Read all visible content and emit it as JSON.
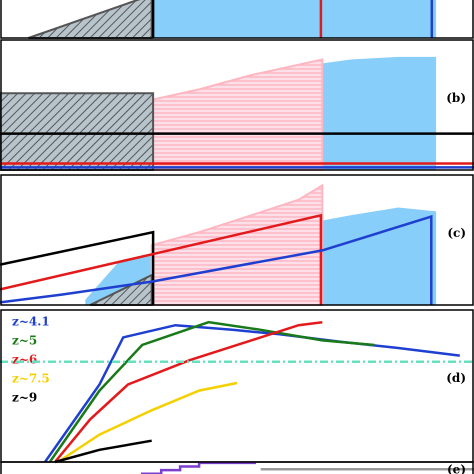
{
  "chart_data": [
    {
      "type": "line",
      "xlim": [
        0,
        1
      ],
      "ylim": [
        0,
        1
      ],
      "series": [
        {
          "color": "#87cefa",
          "style": "area",
          "x": [
            0.32,
            0.92
          ],
          "values": [
            1,
            1
          ]
        },
        {
          "color": "#555555",
          "style": "hatch",
          "x": [
            0.06,
            0.32
          ],
          "values": [
            0,
            1
          ]
        },
        {
          "color": "#000000",
          "style": "line",
          "x": [
            0.323,
            0.323
          ],
          "values": [
            0,
            1
          ]
        },
        {
          "color": "#e31a1c",
          "style": "line",
          "x": [
            0.677,
            0.677
          ],
          "values": [
            0,
            1
          ]
        },
        {
          "color": "#1f3fd0",
          "style": "line",
          "x": [
            0.911,
            0.911
          ],
          "values": [
            0,
            1
          ]
        }
      ]
    },
    {
      "type": "line",
      "label": "(b)",
      "xlim": [
        0,
        1
      ],
      "ylim": [
        0,
        1
      ],
      "series": [
        {
          "color": "#87cefa",
          "style": "area",
          "x": [
            0.18,
            0.32,
            0.42,
            0.53,
            0.63,
            0.68,
            0.74,
            0.84,
            0.92
          ],
          "values": [
            0.46,
            0.54,
            0.62,
            0.69,
            0.77,
            0.82,
            0.85,
            0.87,
            0.87
          ]
        },
        {
          "color": "#ffb6c1",
          "style": "stripe",
          "x": [
            0.32,
            0.42,
            0.53,
            0.63,
            0.68
          ],
          "values": [
            0.54,
            0.62,
            0.73,
            0.81,
            0.85
          ]
        },
        {
          "color": "#555555",
          "style": "hatch",
          "x": [
            0,
            0.323
          ],
          "values": [
            0.59,
            0.59
          ]
        },
        {
          "color": "#000000",
          "style": "line",
          "x": [
            0,
            1
          ],
          "values": [
            0.28,
            0.28
          ]
        },
        {
          "color": "#e31a1c",
          "style": "line",
          "x": [
            0,
            1
          ],
          "values": [
            0.05,
            0.05
          ]
        },
        {
          "color": "#1f3fd0",
          "style": "line",
          "x": [
            0,
            1
          ],
          "values": [
            0.02,
            0.02
          ]
        }
      ]
    },
    {
      "type": "line",
      "label": "(c)",
      "xlim": [
        0,
        1
      ],
      "ylim": [
        0,
        1
      ],
      "series": [
        {
          "color": "#87cefa",
          "style": "area",
          "x": [
            0.18,
            0.25,
            0.32,
            0.42,
            0.53,
            0.63,
            0.68,
            0.74,
            0.84,
            0.92
          ],
          "values": [
            0.04,
            0.33,
            0.38,
            0.46,
            0.54,
            0.62,
            0.65,
            0.69,
            0.75,
            0.72
          ]
        },
        {
          "color": "#ffb6c1",
          "style": "stripe",
          "x": [
            0.32,
            0.42,
            0.53,
            0.63,
            0.68
          ],
          "values": [
            0.46,
            0.56,
            0.69,
            0.81,
            0.92
          ]
        },
        {
          "color": "#555555",
          "style": "hatch",
          "x": [
            0.19,
            0.32
          ],
          "values": [
            0,
            0.23
          ]
        },
        {
          "color": "#000000",
          "style": "line",
          "x": [
            0,
            0.323,
            0.323
          ],
          "values": [
            0.31,
            0.56,
            0
          ]
        },
        {
          "color": "#e31a1c",
          "style": "line",
          "x": [
            0,
            0.677,
            0.677
          ],
          "values": [
            0.12,
            0.69,
            0
          ]
        },
        {
          "color": "#1f3fd0",
          "style": "line",
          "x": [
            0,
            0.13,
            0.32,
            0.68,
            0.91,
            0.91
          ],
          "values": [
            0.02,
            0.08,
            0.18,
            0.42,
            0.68,
            0
          ]
        }
      ]
    },
    {
      "type": "line",
      "label": "(d)",
      "xlim": [
        0,
        1
      ],
      "ylim": [
        0,
        1
      ],
      "series": [
        {
          "name": "z~4.1",
          "color": "#1f3fd0",
          "style": "line",
          "x": [
            0.095,
            0.21,
            0.26,
            0.37,
            0.49,
            0.59,
            0.72,
            0.84,
            0.97
          ],
          "values": [
            0,
            0.51,
            0.82,
            0.9,
            0.87,
            0.84,
            0.79,
            0.75,
            0.7
          ]
        },
        {
          "name": "z~5",
          "color": "#1a7a1a",
          "style": "line",
          "x": [
            0.105,
            0.21,
            0.3,
            0.44,
            0.55,
            0.68,
            0.79
          ],
          "values": [
            0,
            0.47,
            0.77,
            0.92,
            0.87,
            0.8,
            0.77
          ]
        },
        {
          "name": "z~6",
          "color": "#e31a1c",
          "style": "line",
          "x": [
            0.116,
            0.19,
            0.27,
            0.4,
            0.53,
            0.63,
            0.68
          ],
          "values": [
            0,
            0.28,
            0.51,
            0.67,
            0.8,
            0.9,
            0.92
          ]
        },
        {
          "name": "z~7.5",
          "color": "#f5d000",
          "style": "line",
          "x": [
            0.127,
            0.21,
            0.32,
            0.42,
            0.5
          ],
          "values": [
            0.01,
            0.18,
            0.34,
            0.47,
            0.52
          ]
        },
        {
          "name": "z~9",
          "color": "#000000",
          "style": "line",
          "x": [
            0.116,
            0.21,
            0.32
          ],
          "values": [
            0,
            0.08,
            0.14
          ]
        },
        {
          "color": "#66e0c0",
          "style": "dashdot",
          "x": [
            0,
            1
          ],
          "values": [
            0.66,
            0.66
          ]
        }
      ]
    },
    {
      "type": "line",
      "label": "(e)",
      "xlim": [
        0,
        1
      ],
      "ylim": [
        0,
        1
      ],
      "series": [
        {
          "color": "#7b3fd0",
          "style": "line",
          "x": [
            0,
            0.28,
            0.28,
            0.3,
            0.3,
            0.34,
            0.34,
            0.38,
            0.38,
            0.42,
            0.42,
            0.54
          ],
          "values": [
            0.1,
            0.1,
            0.15,
            0.15,
            0.35,
            0.35,
            0.55,
            0.55,
            0.75,
            0.75,
            0.95,
            0.95
          ]
        },
        {
          "color": "#999999",
          "style": "line",
          "x": [
            0.55,
            1
          ],
          "values": [
            0.6,
            0.6
          ]
        }
      ]
    }
  ]
}
